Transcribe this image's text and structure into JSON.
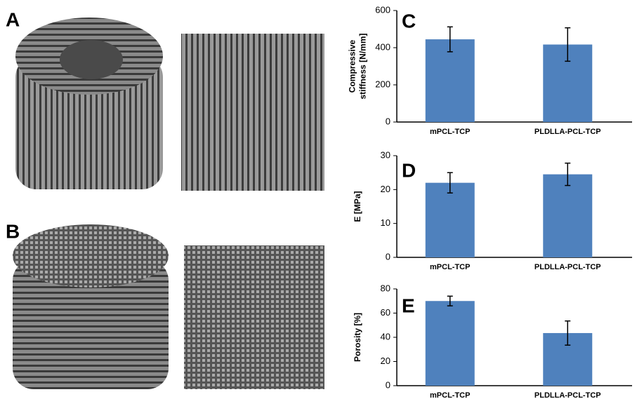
{
  "panel_labels": [
    "A",
    "B"
  ],
  "chart_data": [
    {
      "type": "bar",
      "panel": "C",
      "ylabel": [
        "Compressive",
        "stiffness [N/mm]"
      ],
      "categories": [
        "mPCL-TCP",
        "PLDLLA-PCL-TCP"
      ],
      "values": [
        445,
        417
      ],
      "errors": [
        67,
        90
      ],
      "color": "#4f81bd",
      "ylim": [
        0,
        600
      ],
      "yticks": [
        0,
        200,
        400,
        600
      ]
    },
    {
      "type": "bar",
      "panel": "D",
      "ylabel": [
        "E  [MPa]"
      ],
      "categories": [
        "mPCL-TCP",
        "PLDLLA-PCL-TCP"
      ],
      "values": [
        22,
        24.5
      ],
      "errors": [
        3,
        3.3
      ],
      "color": "#4f81bd",
      "ylim": [
        0,
        30
      ],
      "yticks": [
        0,
        10,
        20,
        30
      ]
    },
    {
      "type": "bar",
      "panel": "E",
      "ylabel": [
        "Porosity [%]"
      ],
      "categories": [
        "mPCL-TCP",
        "PLDLLA-PCL-TCP"
      ],
      "values": [
        70,
        43.5
      ],
      "errors": [
        4,
        10
      ],
      "color": "#4f81bd",
      "ylim": [
        0,
        80
      ],
      "yticks": [
        0,
        20,
        40,
        60,
        80
      ]
    }
  ]
}
